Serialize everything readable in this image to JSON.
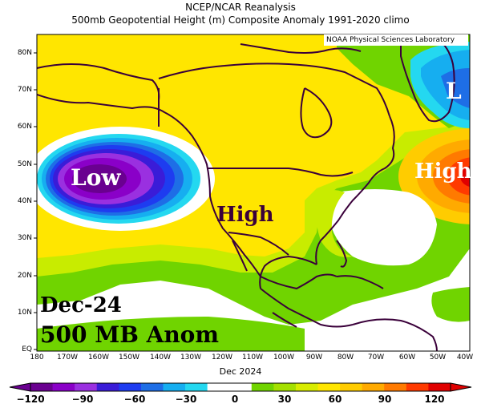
{
  "header": {
    "title_line1": "NCEP/NCAR Reanalysis",
    "title_line2": "500mb Geopotential Height (m) Composite Anomaly 1991-2020 climo"
  },
  "credit": "NOAA Physical Sciences Laboratory",
  "lat_labels": [
    "80N",
    "70N",
    "60N",
    "50N",
    "40N",
    "30N",
    "20N",
    "10N",
    "EQ"
  ],
  "lon_labels": [
    "180",
    "170W",
    "160W",
    "150W",
    "140W",
    "130W",
    "120W",
    "110W",
    "100W",
    "90W",
    "80W",
    "70W",
    "60W",
    "50W",
    "40W"
  ],
  "annotations": {
    "low_pacific": "Low",
    "high_west": "High",
    "high_atlantic": "High",
    "low_greenland": "L",
    "date_label": "Dec-24",
    "level_label": "500 MB Anom"
  },
  "month_label": "Dec 2024",
  "colorbar": {
    "ticks": [
      "−120",
      "−90",
      "−60",
      "−30",
      "0",
      "30",
      "60",
      "90",
      "120"
    ],
    "colors": [
      "#6a0090",
      "#8a00c8",
      "#9a30e0",
      "#3a1cd8",
      "#1e3cf0",
      "#1e6ee6",
      "#16aef0",
      "#24d8f0",
      "#ffffff",
      "#ffffff",
      "#70d400",
      "#a4e000",
      "#d8ec00",
      "#ffe600",
      "#ffcc00",
      "#ffaa00",
      "#ff7a00",
      "#ff3a00",
      "#e00000"
    ]
  },
  "colors": {
    "background": "#ffffff",
    "coast": "#3a003a"
  }
}
